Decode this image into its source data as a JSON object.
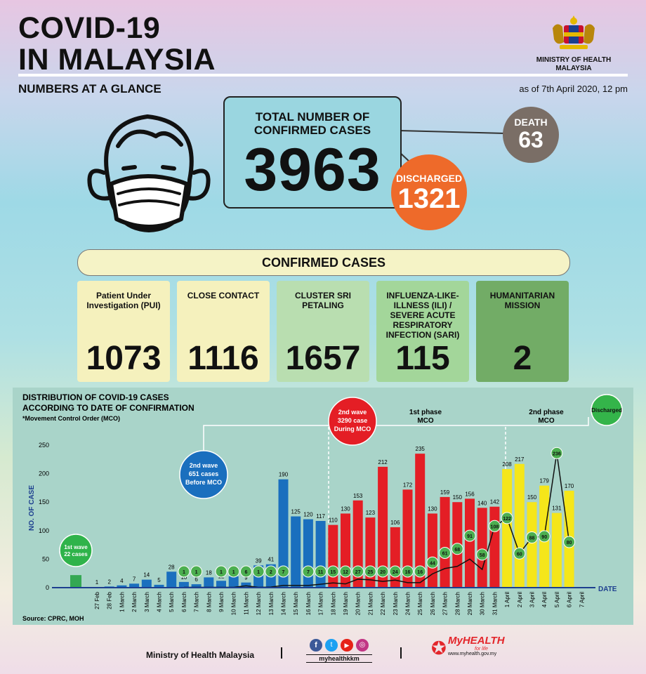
{
  "header": {
    "title_line1": "COVID-19",
    "title_line2": "IN MALAYSIA",
    "ministry_line1": "MINISTRY OF HEALTH",
    "ministry_line2": "MALAYSIA",
    "subtitle": "NUMBERS AT A GLANCE",
    "as_of": "as of 7th April 2020, 12 pm"
  },
  "summary": {
    "total_label_line1": "TOTAL NUMBER OF",
    "total_label_line2": "CONFIRMED CASES",
    "total": "3963",
    "death_label": "DEATH",
    "death": "63",
    "discharged_label": "DISCHARGED",
    "discharged": "1321"
  },
  "confirmed": {
    "title": "CONFIRMED CASES",
    "cards": [
      {
        "label": "Patient Under Investigation (PUI)",
        "value": "1073",
        "color": "#f5f1bd"
      },
      {
        "label": "CLOSE CONTACT",
        "value": "1116",
        "color": "#f5f1bd"
      },
      {
        "label": "CLUSTER SRI PETALING",
        "value": "1657",
        "color": "#b9deb0"
      },
      {
        "label": "INFLUENZA-LIKE-ILLNESS (ILI) / SEVERE ACUTE RESPIRATORY INFECTION (SARI)",
        "value": "115",
        "color": "#a3d69a"
      },
      {
        "label": "HUMANITARIAN MISSION",
        "value": "2",
        "color": "#72ac66"
      }
    ]
  },
  "chart_data": {
    "type": "bar",
    "title_line1": "DISTRIBUTION OF COVID-19 CASES",
    "title_line2": "ACCORDING TO DATE OF CONFIRMATION",
    "note": "*Movement Control Order (MCO)",
    "ylabel": "NO. OF CASE",
    "xlabel": "DATE",
    "ylim": [
      0,
      250
    ],
    "yticks": [
      0,
      50,
      100,
      150,
      200,
      250
    ],
    "categories": [
      "27 Feb",
      "28 Feb",
      "1 March",
      "2 March",
      "3 March",
      "4 March",
      "5 March",
      "6 March",
      "7 March",
      "8 March",
      "9 March",
      "10 March",
      "11 March",
      "12 March",
      "13 March",
      "14 March",
      "15 March",
      "16 March",
      "17 March",
      "18 March",
      "19 March",
      "20 March",
      "21 March",
      "22 March",
      "23 March",
      "24 March",
      "25 March",
      "26 March",
      "27 March",
      "28 March",
      "29 March",
      "30 March",
      "31 March",
      "1 April",
      "2 April",
      "3 April",
      "4 April",
      "5 April",
      "6 April",
      "7 April"
    ],
    "series": [
      {
        "values": [
          1,
          2,
          4,
          7,
          14,
          5,
          28,
          10,
          6,
          18,
          12,
          20,
          9,
          39,
          41,
          190,
          125,
          120,
          117,
          110,
          130,
          153,
          123,
          212,
          106,
          172,
          235,
          130,
          159,
          150,
          156,
          140,
          142,
          208,
          217,
          150,
          179,
          131,
          170,
          0
        ]
      },
      {
        "name": "Discharged",
        "values": [
          null,
          null,
          null,
          null,
          null,
          null,
          null,
          1,
          1,
          null,
          1,
          1,
          6,
          1,
          2,
          7,
          null,
          7,
          11,
          15,
          12,
          27,
          25,
          20,
          24,
          16,
          16,
          44,
          61,
          68,
          91,
          58,
          108,
          122,
          60,
          88,
          90,
          236,
          80,
          null
        ]
      }
    ],
    "bar_colors": [
      "#1a6fbe",
      "#e41e25",
      "#f5e61a"
    ],
    "first_wave": {
      "label": "1st wave",
      "sub": "22 cases",
      "value": 22
    },
    "wave2_before": {
      "line1": "2nd wave",
      "line2": "651 cases",
      "line3": "Before MCO"
    },
    "wave2_during": {
      "line1": "2nd wave",
      "line2": "3290 case",
      "line3": "During MCO"
    },
    "phase1": {
      "line1": "1st phase",
      "line2": "MCO"
    },
    "phase2": {
      "line1": "2nd phase",
      "line2": "MCO"
    },
    "legend": "Discharged",
    "source": "Source: CPRC, MOH"
  },
  "footer": {
    "ministry": "Ministry of Health Malaysia",
    "handle": "myhealthkkm",
    "brand": "MyHEALTH",
    "brand_sub": "for life",
    "site": "www.myhealth.gov.my"
  }
}
